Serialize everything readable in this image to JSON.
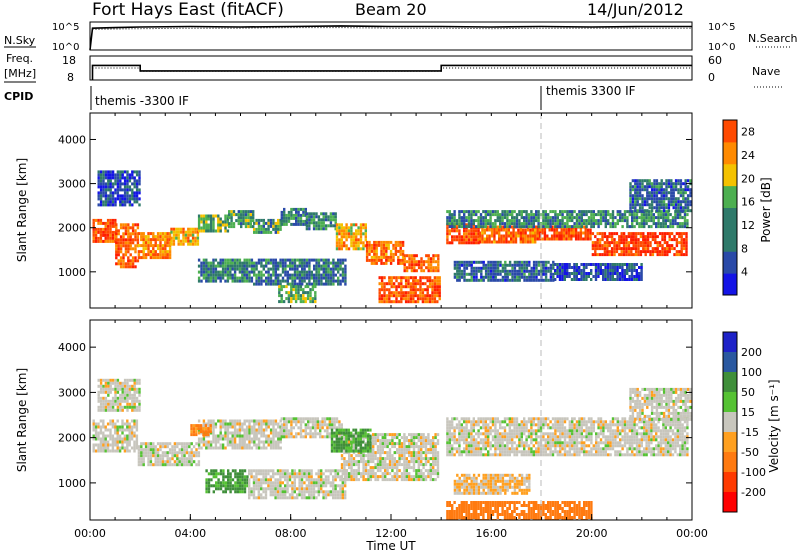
{
  "header": {
    "station": "Fort Hays East (fitACF)",
    "beam": "Beam 20",
    "date": "14/Jun/2012"
  },
  "left_labels": {
    "nsky": "N.Sky",
    "freq": "Freq.",
    "freq_unit": "[MHz]",
    "cpid": "CPID"
  },
  "right_labels": {
    "nsearch": "N.Search",
    "nave": "Nave"
  },
  "cpid_labels": [
    "themis -3300 IF",
    "themis 3300 IF"
  ],
  "chart_data": [
    {
      "type": "line",
      "name": "noise-panel",
      "ylabel": "N.Sky",
      "right_ylabel": "N.Search",
      "yticks_left": [
        "10^5",
        "10^0"
      ],
      "yticks_right": [
        "10^5",
        "10^0"
      ],
      "scale": "log",
      "series": [
        {
          "name": "N.Sky",
          "style": "solid",
          "values_description_free": true,
          "x": [
            0,
            0.1,
            1,
            2,
            4,
            6,
            8,
            10,
            12,
            14,
            16,
            18,
            20,
            22,
            24
          ],
          "y_log10": [
            0,
            3.9,
            4.0,
            4.1,
            4.2,
            4.1,
            4.2,
            4.3,
            4.2,
            4.2,
            4.1,
            4.2,
            4.1,
            4.2,
            4.2
          ]
        },
        {
          "name": "N.Search",
          "style": "dotted",
          "x": [
            0.1,
            2,
            4,
            6,
            8,
            10,
            12,
            14,
            16,
            18,
            20,
            22,
            24
          ],
          "y_log10": [
            3.7,
            3.8,
            3.9,
            3.9,
            4.0,
            4.0,
            3.9,
            3.9,
            3.8,
            3.9,
            3.9,
            3.9,
            3.9
          ]
        }
      ],
      "xlim": [
        0,
        24
      ]
    },
    {
      "type": "line",
      "name": "freq-panel",
      "ylabel": "Freq. [MHz]",
      "right_ylabel": "Nave",
      "yticks_left": [
        "18",
        "8"
      ],
      "yticks_right": [
        "60",
        "0"
      ],
      "ylim_left": [
        8,
        18
      ],
      "ylim_right": [
        0,
        60
      ],
      "series": [
        {
          "name": "Freq.",
          "style": "solid",
          "x": [
            0.1,
            0.1,
            2.0,
            2.0,
            14.0,
            14.0,
            24
          ],
          "y": [
            8,
            14.1,
            14.1,
            11.8,
            11.8,
            14.1,
            14.1
          ]
        },
        {
          "name": "Nave",
          "style": "dotted",
          "x": [
            0.1,
            2.0,
            2.0,
            14.0,
            14.0,
            24
          ],
          "y": [
            30,
            30,
            22,
            22,
            30,
            30
          ]
        }
      ],
      "xlim": [
        0,
        24
      ]
    },
    {
      "type": "heatmap",
      "name": "power",
      "ylabel": "Slant Range [km]",
      "colorbar_label": "Power [dB]",
      "colorbar_ticks": [
        4,
        8,
        12,
        16,
        20,
        24,
        28
      ],
      "colorbar_range": [
        0,
        30
      ],
      "yticks": [
        1000,
        2000,
        3000,
        4000
      ],
      "ylim": [
        180,
        4600
      ],
      "xlim": [
        0,
        24
      ],
      "bands": [
        {
          "x0": 0.1,
          "x1": 1.0,
          "y0": 1700,
          "y1": 2200,
          "v": 26
        },
        {
          "x0": 1.0,
          "x1": 1.9,
          "y0": 1100,
          "y1": 2100,
          "v": 25
        },
        {
          "x0": 1.9,
          "x1": 3.2,
          "y0": 1300,
          "y1": 1900,
          "v": 22
        },
        {
          "x0": 3.2,
          "x1": 4.3,
          "y0": 1600,
          "y1": 2000,
          "v": 20
        },
        {
          "x0": 4.3,
          "x1": 5.5,
          "y0": 1900,
          "y1": 2300,
          "v": 14
        },
        {
          "x0": 5.5,
          "x1": 6.5,
          "y0": 2050,
          "y1": 2400,
          "v": 12
        },
        {
          "x0": 6.5,
          "x1": 7.6,
          "y0": 1900,
          "y1": 2200,
          "v": 12
        },
        {
          "x0": 7.6,
          "x1": 8.6,
          "y0": 2100,
          "y1": 2450,
          "v": 10
        },
        {
          "x0": 8.6,
          "x1": 9.8,
          "y0": 2000,
          "y1": 2350,
          "v": 11
        },
        {
          "x0": 9.8,
          "x1": 11.0,
          "y0": 1500,
          "y1": 2100,
          "v": 20
        },
        {
          "x0": 11.0,
          "x1": 12.5,
          "y0": 1200,
          "y1": 1700,
          "v": 24
        },
        {
          "x0": 12.5,
          "x1": 13.9,
          "y0": 1000,
          "y1": 1400,
          "v": 25
        },
        {
          "x0": 4.3,
          "x1": 6.5,
          "y0": 800,
          "y1": 1300,
          "v": 10
        },
        {
          "x0": 6.5,
          "x1": 10.2,
          "y0": 700,
          "y1": 1300,
          "v": 9
        },
        {
          "x0": 7.5,
          "x1": 9.0,
          "y0": 300,
          "y1": 700,
          "v": 14
        },
        {
          "x0": 11.5,
          "x1": 13.9,
          "y0": 300,
          "y1": 900,
          "v": 26
        },
        {
          "x0": 14.2,
          "x1": 15.5,
          "y0": 1650,
          "y1": 2100,
          "v": 27
        },
        {
          "x0": 15.5,
          "x1": 17.8,
          "y0": 1700,
          "y1": 2050,
          "v": 24
        },
        {
          "x0": 17.8,
          "x1": 20.0,
          "y0": 1750,
          "y1": 2050,
          "v": 26
        },
        {
          "x0": 20.0,
          "x1": 23.8,
          "y0": 1400,
          "y1": 1900,
          "v": 28
        },
        {
          "x0": 14.2,
          "x1": 23.8,
          "y0": 2050,
          "y1": 2400,
          "v": 11
        },
        {
          "x0": 14.5,
          "x1": 18.5,
          "y0": 800,
          "y1": 1250,
          "v": 8
        },
        {
          "x0": 18.5,
          "x1": 22.0,
          "y0": 800,
          "y1": 1200,
          "v": 6
        },
        {
          "x0": 0.3,
          "x1": 2.0,
          "y0": 2500,
          "y1": 3300,
          "v": 6
        },
        {
          "x0": 21.5,
          "x1": 23.9,
          "y0": 2400,
          "y1": 3100,
          "v": 8
        }
      ]
    },
    {
      "type": "heatmap",
      "name": "velocity",
      "ylabel": "Slant Range [km]",
      "colorbar_label": "Velocity [m s⁻¹]",
      "colorbar_ticks": [
        200,
        100,
        50,
        15,
        -15,
        -50,
        -100,
        -200
      ],
      "colorbar_range": [
        -250,
        250
      ],
      "yticks": [
        1000,
        2000,
        3000,
        4000
      ],
      "ylim": [
        180,
        4600
      ],
      "xlim": [
        0,
        24
      ],
      "xticks": [
        "00:00",
        "04:00",
        "08:00",
        "12:00",
        "16:00",
        "20:00",
        "00:00"
      ],
      "xlabel": "Time UT",
      "bands": [
        {
          "x0": 0.1,
          "x1": 1.9,
          "y0": 1700,
          "y1": 2400,
          "v": 0
        },
        {
          "x0": 1.9,
          "x1": 4.3,
          "y0": 1400,
          "y1": 1900,
          "v": 0
        },
        {
          "x0": 4.3,
          "x1": 7.6,
          "y0": 1800,
          "y1": 2400,
          "v": 0
        },
        {
          "x0": 7.6,
          "x1": 10.0,
          "y0": 2000,
          "y1": 2450,
          "v": 0
        },
        {
          "x0": 10.0,
          "x1": 13.9,
          "y0": 1100,
          "y1": 2100,
          "v": 0
        },
        {
          "x0": 4.6,
          "x1": 6.3,
          "y0": 800,
          "y1": 1300,
          "v": 60
        },
        {
          "x0": 6.3,
          "x1": 10.2,
          "y0": 700,
          "y1": 1300,
          "v": 0
        },
        {
          "x0": 9.6,
          "x1": 11.2,
          "y0": 1700,
          "y1": 2200,
          "v": 55
        },
        {
          "x0": 4.0,
          "x1": 4.8,
          "y0": 2050,
          "y1": 2300,
          "v": -60
        },
        {
          "x0": 14.2,
          "x1": 23.8,
          "y0": 1600,
          "y1": 2450,
          "v": 0
        },
        {
          "x0": 14.5,
          "x1": 17.5,
          "y0": 800,
          "y1": 1200,
          "v": -20
        },
        {
          "x0": 14.2,
          "x1": 20.0,
          "y0": 200,
          "y1": 600,
          "v": -70
        },
        {
          "x0": 0.3,
          "x1": 2.0,
          "y0": 2600,
          "y1": 3300,
          "v": 0
        },
        {
          "x0": 21.5,
          "x1": 23.9,
          "y0": 2400,
          "y1": 3100,
          "v": 0
        }
      ]
    }
  ]
}
